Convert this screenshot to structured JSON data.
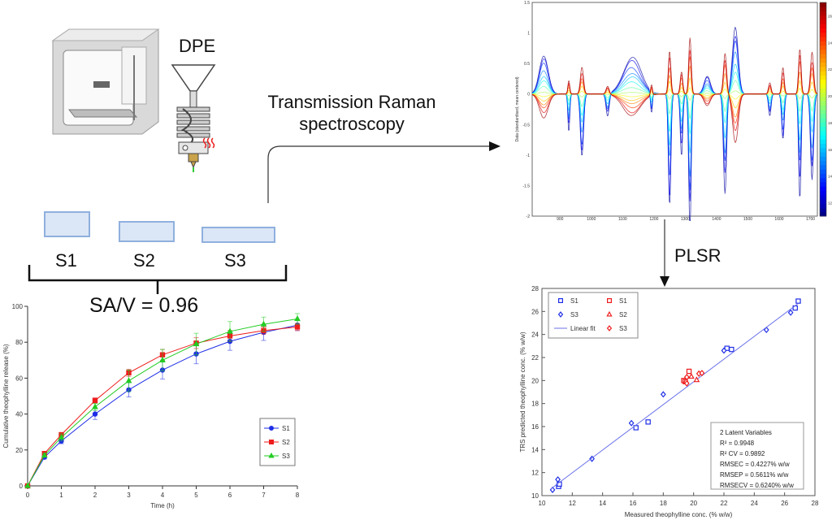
{
  "labels": {
    "printer": "DPE",
    "technique": [
      "Transmission Raman",
      "spectroscopy"
    ],
    "model": "PLSR",
    "samples": [
      "S1",
      "S2",
      "S3"
    ],
    "ratio": "SA/V = 0.96"
  },
  "colors": {
    "blue": "#1f2ee6",
    "red": "#ee1c1c",
    "green": "#22cc22",
    "arrow": "#111111",
    "sample_fill": "#dbe6f6",
    "sample_border": "#8fb0de"
  },
  "icons": [
    "3d-printer-icon",
    "extruder-nozzle-icon"
  ],
  "chart_data": [
    {
      "type": "line",
      "title": "",
      "xlabel": "Time (h)",
      "ylabel": "Cumulative theophylline release (%)",
      "xlim": [
        0,
        8
      ],
      "ylim": [
        0,
        100
      ],
      "xticks": [
        0,
        1,
        2,
        3,
        4,
        5,
        6,
        7,
        8
      ],
      "yticks": [
        0,
        20,
        40,
        60,
        80,
        100
      ],
      "legend": "bottom-right",
      "x": [
        0,
        0.5,
        1,
        2,
        3,
        4,
        5,
        6,
        7,
        8
      ],
      "series": [
        {
          "name": "S1",
          "color": "#1f2ee6",
          "marker": "circle",
          "values": [
            0,
            16,
            25,
            40,
            53.5,
            64.5,
            73.5,
            80.5,
            85.5,
            89.5
          ],
          "errors": [
            0,
            1,
            1.5,
            3,
            4,
            5,
            5.5,
            5,
            4.5,
            3
          ]
        },
        {
          "name": "S2",
          "color": "#ee1c1c",
          "marker": "square",
          "values": [
            0,
            18,
            28.5,
            47.5,
            63,
            73,
            79.5,
            83.5,
            86.5,
            88.5
          ],
          "errors": [
            0,
            1,
            1,
            1.5,
            2,
            3,
            3,
            3,
            2,
            2
          ]
        },
        {
          "name": "S3",
          "color": "#22cc22",
          "marker": "triangle",
          "values": [
            0,
            17,
            27,
            44,
            58.5,
            70,
            79,
            86,
            90,
            93
          ],
          "errors": [
            0,
            1,
            2,
            2,
            6,
            6,
            6,
            5.5,
            4,
            3
          ]
        }
      ]
    },
    {
      "type": "line",
      "title": "",
      "xlabel": "wavenumber (cm^-1)",
      "ylabel": "Data (standardised, mean centered)",
      "xlim": [
        811,
        1722
      ],
      "ylim": [
        -2,
        1.5
      ],
      "xticks": [
        900,
        1000,
        1100,
        1200,
        1300,
        1400,
        1500,
        1600,
        1700
      ],
      "yticks": [
        -2,
        -1.5,
        -1,
        -0.5,
        0,
        0.5,
        1,
        1.5
      ],
      "colorbar": {
        "colormap": "jet",
        "range": [
          11,
          27
        ],
        "ticks": [
          12,
          14,
          16,
          18,
          20,
          22,
          24,
          26
        ]
      },
      "peaks": [
        {
          "x": 848,
          "low_conc": 0.55,
          "high_conc": -0.4,
          "width": 14
        },
        {
          "x": 928,
          "low_conc": -0.5,
          "high_conc": 0.25,
          "width": 3
        },
        {
          "x": 970,
          "low_conc": -0.9,
          "high_conc": 0.45,
          "width": 5
        },
        {
          "x": 1052,
          "low_conc": -0.3,
          "high_conc": 0.15,
          "width": 5
        },
        {
          "x": 1130,
          "low_conc": 0.5,
          "high_conc": -0.38,
          "width": 28
        },
        {
          "x": 1192,
          "low_conc": -0.3,
          "high_conc": 0.2,
          "width": 3
        },
        {
          "x": 1250,
          "low_conc": -1.55,
          "high_conc": 0.75,
          "width": 4
        },
        {
          "x": 1288,
          "low_conc": -0.8,
          "high_conc": 0.42,
          "width": 4
        },
        {
          "x": 1315,
          "low_conc": -1.8,
          "high_conc": 1.0,
          "width": 4
        },
        {
          "x": 1370,
          "low_conc": 0.25,
          "high_conc": -0.2,
          "width": 10
        },
        {
          "x": 1427,
          "low_conc": -1.3,
          "high_conc": 0.75,
          "width": 5
        },
        {
          "x": 1460,
          "low_conc": 0.95,
          "high_conc": -0.82,
          "width": 9
        },
        {
          "x": 1570,
          "low_conc": -0.3,
          "high_conc": 0.2,
          "width": 4
        },
        {
          "x": 1612,
          "low_conc": -0.65,
          "high_conc": 0.45,
          "width": 4
        },
        {
          "x": 1666,
          "low_conc": -1.35,
          "high_conc": 0.85,
          "width": 4
        },
        {
          "x": 1705,
          "low_conc": -1.2,
          "high_conc": 0.72,
          "width": 5
        }
      ]
    },
    {
      "type": "scatter",
      "title": "",
      "xlabel": "Measured theophylline conc. (% w/w)",
      "ylabel": "TRS predicted theophylline conc. (% w/w)",
      "xlim": [
        10,
        28
      ],
      "ylim": [
        10,
        28
      ],
      "xticks": [
        10,
        12,
        14,
        16,
        18,
        20,
        22,
        24,
        26,
        28
      ],
      "yticks": [
        10,
        12,
        14,
        16,
        18,
        20,
        22,
        24,
        26,
        28
      ],
      "legend": "top-left",
      "series": [
        {
          "name": "S1",
          "color": "#1f2ee6",
          "marker": "square",
          "points": [
            [
              11.1,
              10.8
            ],
            [
              11.15,
              11.0
            ],
            [
              16.2,
              15.9
            ],
            [
              17.0,
              16.4
            ],
            [
              22.2,
              22.8
            ],
            [
              22.5,
              22.7
            ],
            [
              26.7,
              26.3
            ],
            [
              26.9,
              26.9
            ]
          ]
        },
        {
          "name": "S3",
          "color": "#1f2ee6",
          "marker": "diamond",
          "points": [
            [
              10.7,
              10.5
            ],
            [
              11.05,
              11.4
            ],
            [
              13.3,
              13.2
            ],
            [
              15.9,
              16.3
            ],
            [
              18.0,
              18.8
            ],
            [
              22.0,
              22.6
            ],
            [
              24.8,
              24.4
            ],
            [
              26.4,
              25.9
            ]
          ]
        },
        {
          "name": "Linear fit",
          "color": "#6b72e8",
          "marker": "line",
          "points": [
            [
              10.6,
              10.6
            ],
            [
              26.9,
              26.7
            ]
          ]
        },
        {
          "name": "S1",
          "color": "#ee1c1c",
          "marker": "square",
          "points": [
            [
              19.35,
              20.0
            ],
            [
              19.45,
              19.9
            ],
            [
              19.7,
              20.8
            ]
          ]
        },
        {
          "name": "S2",
          "color": "#ee1c1c",
          "marker": "triangle",
          "points": [
            [
              19.85,
              20.35
            ],
            [
              20.2,
              20.05
            ],
            [
              19.5,
              19.95
            ]
          ]
        },
        {
          "name": "S3",
          "color": "#ee1c1c",
          "marker": "diamond",
          "points": [
            [
              19.55,
              20.3
            ],
            [
              19.55,
              19.75
            ],
            [
              20.35,
              20.6
            ],
            [
              20.55,
              20.65
            ]
          ]
        }
      ],
      "stats": [
        "2 Latent Variables",
        "R² = 0.9948",
        "R² CV = 0.9892",
        "RMSEC = 0.4227% w/w",
        "RMSEP = 0.5611% w/w",
        "RMSECV = 0.6240% w/w"
      ]
    }
  ]
}
